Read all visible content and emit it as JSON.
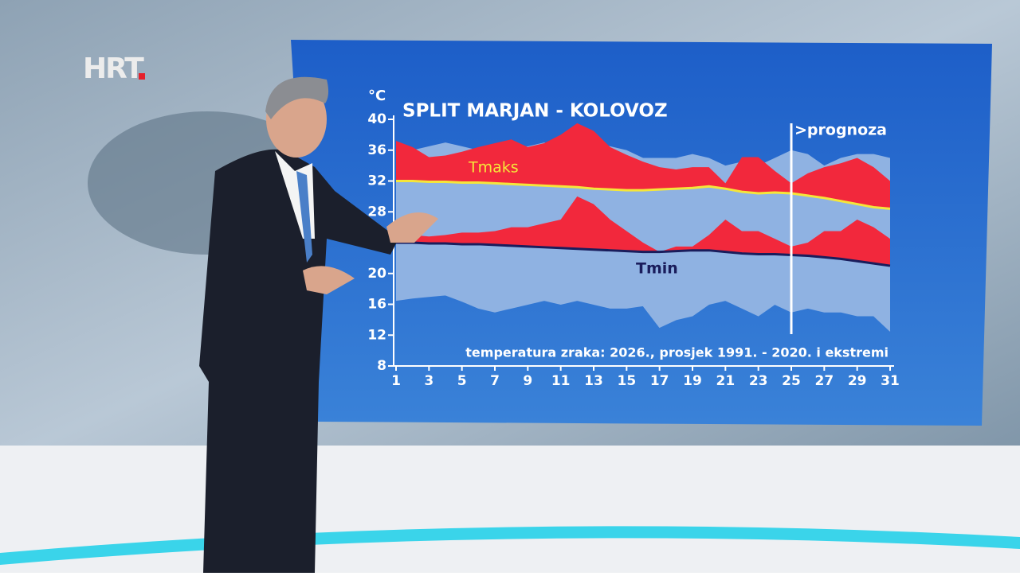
{
  "logo": "HRT",
  "chart_data": {
    "type": "band",
    "title": "SPLIT MARJAN - KOLOVOZ",
    "y_unit": "°C",
    "caption": "temperatura zraka: 2026., prosjek 1991. - 2020. i ekstremi",
    "forecast_label": ">prognoza",
    "forecast_start": 25,
    "x": [
      1,
      2,
      3,
      4,
      5,
      6,
      7,
      8,
      9,
      10,
      11,
      12,
      13,
      14,
      15,
      16,
      17,
      18,
      19,
      20,
      21,
      22,
      23,
      24,
      25,
      26,
      27,
      28,
      29,
      30,
      31
    ],
    "xlim": [
      1,
      31
    ],
    "xticks": [
      1,
      3,
      5,
      7,
      9,
      11,
      13,
      15,
      17,
      19,
      21,
      23,
      25,
      27,
      29,
      31
    ],
    "ylim": [
      8,
      40
    ],
    "yticks": [
      8,
      12,
      16,
      20,
      24,
      28,
      32,
      36,
      40
    ],
    "series": [
      {
        "name": "Tmaks",
        "color": "#f2283c",
        "average_color": "#f5e63a",
        "values": [
          37.2,
          36.4,
          35.1,
          35.3,
          35.8,
          36.4,
          36.9,
          37.4,
          36.4,
          36.9,
          38,
          39.5,
          38.5,
          36.4,
          35.4,
          34.5,
          33.8,
          33.5,
          33.8,
          33.8,
          31.7,
          35.1,
          35.1,
          33.3,
          31.7,
          33,
          33.8,
          34.3,
          35,
          33.8,
          32
        ],
        "average": [
          32,
          32,
          31.9,
          31.9,
          31.8,
          31.8,
          31.7,
          31.6,
          31.5,
          31.4,
          31.3,
          31.2,
          31,
          30.9,
          30.8,
          30.8,
          30.9,
          31,
          31.1,
          31.3,
          31,
          30.6,
          30.4,
          30.5,
          30.4,
          30.1,
          29.8,
          29.4,
          29,
          28.6,
          28.4
        ]
      },
      {
        "name": "Tmin",
        "color": "#f2283c",
        "average_color": "#1a1d5c",
        "values": [
          25,
          25,
          24.8,
          25,
          25.3,
          25.3,
          25.5,
          26,
          26,
          26.5,
          27,
          30,
          29,
          27,
          25.5,
          24,
          22.8,
          23.5,
          23.5,
          25,
          27,
          25.5,
          25.5,
          24.5,
          23.5,
          24,
          25.5,
          25.5,
          27,
          26,
          24.5
        ],
        "average": [
          24,
          24,
          23.9,
          23.9,
          23.8,
          23.8,
          23.7,
          23.6,
          23.5,
          23.4,
          23.3,
          23.2,
          23.1,
          23,
          22.9,
          22.8,
          22.8,
          22.9,
          23,
          23,
          22.8,
          22.6,
          22.5,
          22.5,
          22.4,
          22.3,
          22.1,
          21.9,
          21.6,
          21.3,
          21
        ]
      }
    ],
    "extremes": {
      "color": "#8fb2e2",
      "max": [
        37,
        36,
        36.5,
        37,
        36.5,
        36,
        36,
        36.5,
        36.5,
        37,
        36.5,
        37,
        37,
        36.5,
        36,
        35,
        35,
        35,
        35.5,
        35,
        34,
        34.5,
        34,
        35,
        36,
        35.5,
        34,
        35,
        35.5,
        35.5,
        35
      ],
      "min": [
        16.5,
        16.8,
        17,
        17.2,
        16.4,
        15.5,
        15,
        15.5,
        16,
        16.5,
        16,
        16.5,
        16,
        15.5,
        15.5,
        15.8,
        13,
        14,
        14.5,
        16,
        16.5,
        15.5,
        14.5,
        16,
        15,
        15.5,
        15,
        15,
        14.5,
        14.5,
        12.5
      ]
    }
  }
}
